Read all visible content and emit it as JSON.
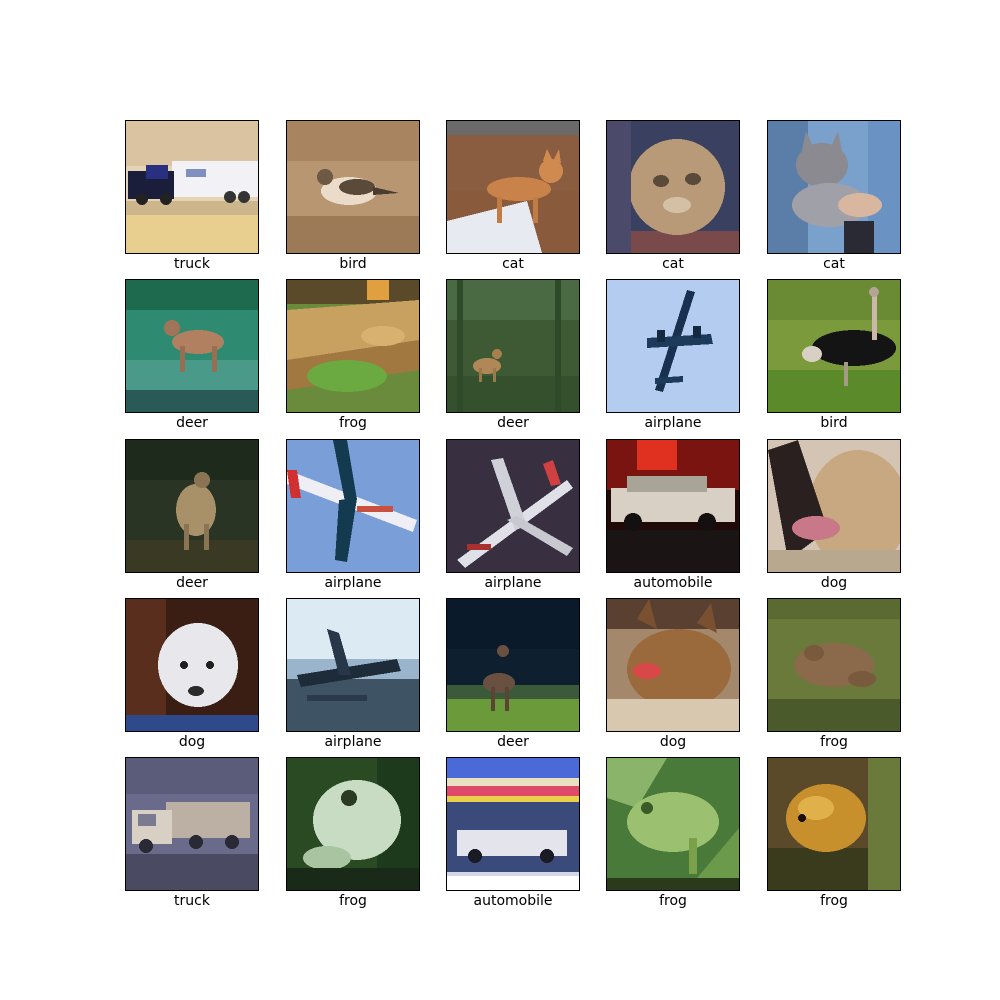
{
  "figure": {
    "images": [
      {
        "label": "truck",
        "scene": "truck"
      },
      {
        "label": "bird",
        "scene": "bird"
      },
      {
        "label": "cat",
        "scene": "cat-tabletop"
      },
      {
        "label": "cat",
        "scene": "cat-closeup"
      },
      {
        "label": "cat",
        "scene": "cat-held"
      },
      {
        "label": "deer",
        "scene": "deer-green"
      },
      {
        "label": "frog",
        "scene": "frog-brown"
      },
      {
        "label": "deer",
        "scene": "deer-forest"
      },
      {
        "label": "airplane",
        "scene": "airplane-sky"
      },
      {
        "label": "bird",
        "scene": "ostrich"
      },
      {
        "label": "deer",
        "scene": "deer-dark"
      },
      {
        "label": "airplane",
        "scene": "airplane-blue"
      },
      {
        "label": "airplane",
        "scene": "airplane-dark"
      },
      {
        "label": "automobile",
        "scene": "car-red"
      },
      {
        "label": "dog",
        "scene": "dog-closeup"
      },
      {
        "label": "dog",
        "scene": "dog-white"
      },
      {
        "label": "airplane",
        "scene": "seaplane"
      },
      {
        "label": "deer",
        "scene": "deer-night"
      },
      {
        "label": "dog",
        "scene": "dog-yorkie"
      },
      {
        "label": "frog",
        "scene": "frog-moss"
      },
      {
        "label": "truck",
        "scene": "truck-gray"
      },
      {
        "label": "frog",
        "scene": "frog-pale"
      },
      {
        "label": "automobile",
        "scene": "car-poster"
      },
      {
        "label": "frog",
        "scene": "frog-green"
      },
      {
        "label": "frog",
        "scene": "frog-orange"
      }
    ]
  }
}
